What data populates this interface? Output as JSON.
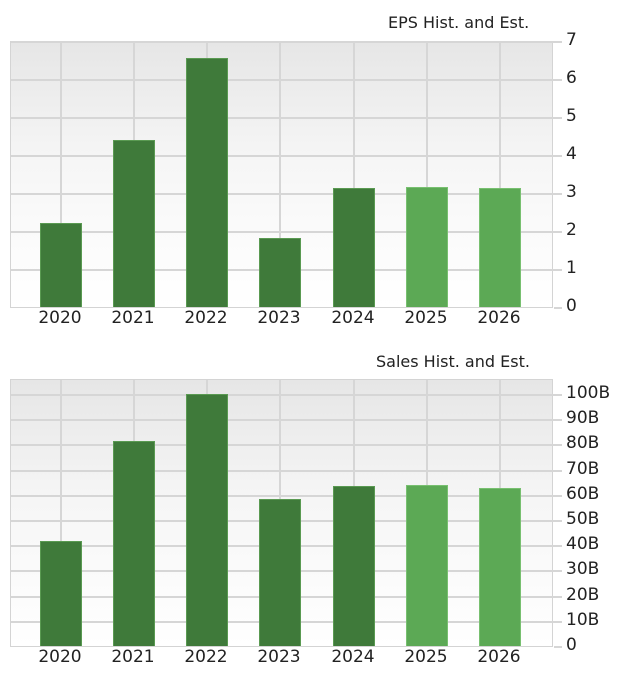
{
  "colors": {
    "historical": "#3f7a3a",
    "estimate": "#5ca955",
    "grid": "#d6d6d6"
  },
  "chart_data": [
    {
      "type": "bar",
      "title": "EPS Hist. and Est.",
      "xlabel": "",
      "ylabel": "",
      "categories": [
        "2020",
        "2021",
        "2022",
        "2023",
        "2024",
        "2025",
        "2026"
      ],
      "values": [
        2.2,
        4.4,
        6.55,
        1.82,
        3.13,
        3.17,
        3.12
      ],
      "kind": [
        "historical",
        "historical",
        "historical",
        "historical",
        "historical",
        "estimate",
        "estimate"
      ],
      "ylim": [
        0,
        7
      ],
      "yticks": [
        "0",
        "1",
        "2",
        "3",
        "4",
        "5",
        "6",
        "7"
      ],
      "grid": true,
      "yaxis_position": "right"
    },
    {
      "type": "bar",
      "title": "Sales Hist. and Est.",
      "xlabel": "",
      "ylabel": "",
      "categories": [
        "2020",
        "2021",
        "2022",
        "2023",
        "2024",
        "2025",
        "2026"
      ],
      "values": [
        41.7,
        81.5,
        100.0,
        58.3,
        63.5,
        63.7,
        62.9
      ],
      "value_unit": "B",
      "kind": [
        "historical",
        "historical",
        "historical",
        "historical",
        "historical",
        "estimate",
        "estimate"
      ],
      "ylim": [
        0,
        100
      ],
      "yticks": [
        "0",
        "10B",
        "20B",
        "30B",
        "40B",
        "50B",
        "60B",
        "70B",
        "80B",
        "90B",
        "100B"
      ],
      "grid": true,
      "yaxis_position": "right"
    }
  ]
}
